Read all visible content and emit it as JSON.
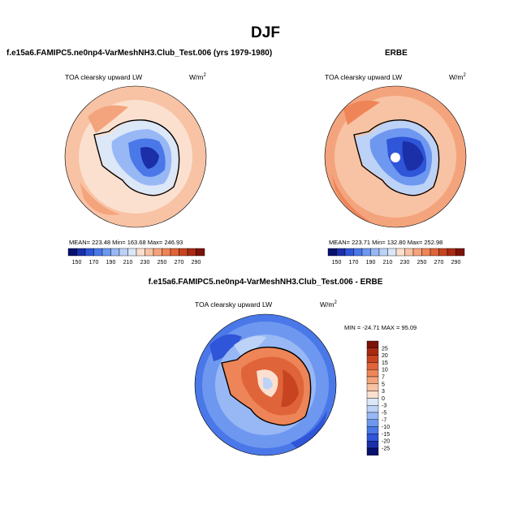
{
  "figure": {
    "title": "DJF",
    "left_panel": {
      "subtitle": "f.e15a6.FAMIPC5.ne0np4-VarMeshNH3.Club_Test.006 (yrs 1979-1980)",
      "label": "TOA clearsky upward LW",
      "units": "W/m",
      "units_sup": "2",
      "stats": "MEAN= 223.48  Min= 163.68  Max= 246.93"
    },
    "right_panel": {
      "subtitle": "ERBE",
      "label": "TOA clearsky upward LW",
      "units": "W/m",
      "units_sup": "2",
      "stats": "MEAN= 223.71  Min= 132.80  Max= 252.98"
    },
    "diff_panel": {
      "subtitle": "f.e15a6.FAMIPC5.ne0np4-VarMeshNH3.Club_Test.006 - ERBE",
      "label": "TOA clearsky upward LW",
      "units": "W/m",
      "units_sup": "2",
      "stats": "MIN = -24.71 MAX =  95.09"
    },
    "colorbar_abs": {
      "labels": [
        "150",
        "170",
        "190",
        "210",
        "230",
        "250",
        "270",
        "290"
      ],
      "colors": [
        "#08106e",
        "#1a2fa8",
        "#2f55d8",
        "#4a78e8",
        "#6e98f0",
        "#98b8f5",
        "#bcd2f7",
        "#dce7f8",
        "#fbe0cf",
        "#f8c3a4",
        "#f4a47c",
        "#ee8558",
        "#e0643a",
        "#c84420",
        "#a82a12",
        "#7c1208"
      ]
    },
    "colorbar_diff": {
      "labels": [
        "25",
        "20",
        "15",
        "10",
        "7",
        "5",
        "3",
        "0",
        "-3",
        "-5",
        "-7",
        "-10",
        "-15",
        "-20",
        "-25"
      ],
      "colors": [
        "#7c1208",
        "#a82a12",
        "#c84420",
        "#e0643a",
        "#ee8558",
        "#f4a47c",
        "#f8c3a4",
        "#fbe0cf",
        "#dce7f8",
        "#bcd2f7",
        "#98b8f5",
        "#6e98f0",
        "#4a78e8",
        "#2f55d8",
        "#1a2fa8",
        "#08106e"
      ]
    }
  }
}
